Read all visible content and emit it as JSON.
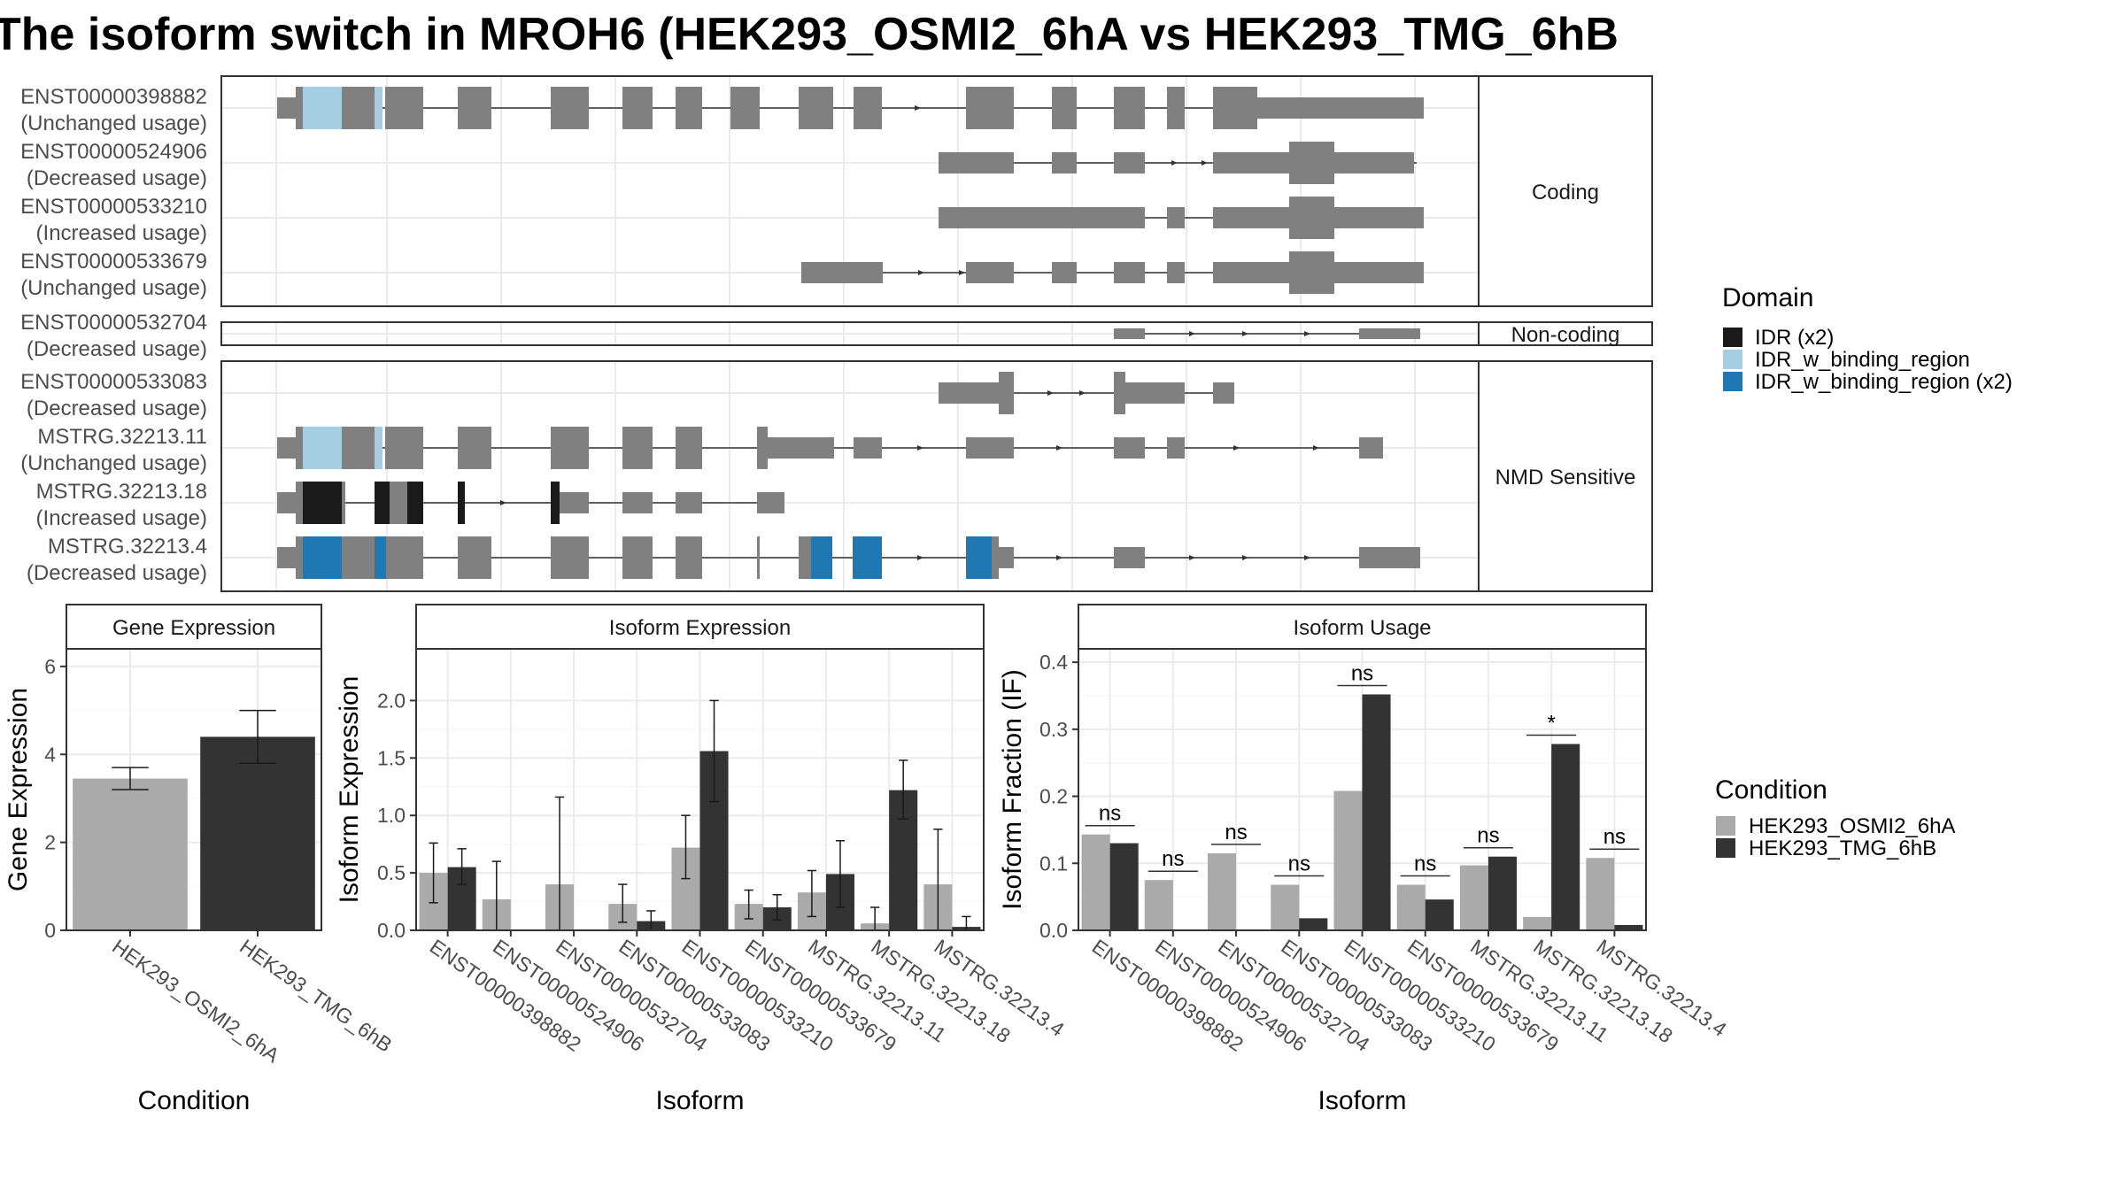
{
  "title": "The isoform switch in MROH6 (HEK293_OSMI2_6hA vs HEK293_TMG_6hB",
  "structure_panel": {
    "groups": [
      {
        "label": "Coding",
        "rows": [
          0,
          1,
          2,
          3
        ]
      },
      {
        "label": "Non-coding",
        "rows": [
          4
        ]
      },
      {
        "label": "NMD Sensitive",
        "rows": [
          5,
          6,
          7,
          8
        ]
      }
    ],
    "transcripts": [
      {
        "id": "ENST00000398882",
        "usage": "(Unchanged usage)"
      },
      {
        "id": "ENST00000524906",
        "usage": "(Decreased usage)"
      },
      {
        "id": "ENST00000533210",
        "usage": "(Increased usage)"
      },
      {
        "id": "ENST00000533679",
        "usage": "(Unchanged usage)"
      },
      {
        "id": "ENST00000532704",
        "usage": "(Decreased usage)"
      },
      {
        "id": "ENST00000533083",
        "usage": "(Decreased usage)"
      },
      {
        "id": "MSTRG.32213.11",
        "usage": "(Unchanged usage)"
      },
      {
        "id": "MSTRG.32213.18",
        "usage": "(Increased usage)"
      },
      {
        "id": "MSTRG.32213.4",
        "usage": "(Decreased usage)"
      }
    ]
  },
  "domain_legend": {
    "title": "Domain",
    "items": [
      {
        "label": "IDR (x2)",
        "color": "#1a1a1a"
      },
      {
        "label": "IDR_w_binding_region",
        "color": "#a6cee3"
      },
      {
        "label": "IDR_w_binding_region (x2)",
        "color": "#1f78b4"
      }
    ]
  },
  "condition_legend": {
    "title": "Condition",
    "items": [
      {
        "label": "HEK293_OSMI2_6hA",
        "color": "#aaaaaa"
      },
      {
        "label": "HEK293_TMG_6hB",
        "color": "#333333"
      }
    ]
  },
  "chart_data": [
    {
      "type": "bar",
      "title": "Gene Expression",
      "xlabel": "Condition",
      "ylabel": "Gene Expression",
      "ylim": [
        0,
        6.4
      ],
      "yticks": [
        0,
        2,
        4,
        6
      ],
      "categories": [
        "HEK293_OSMI2_6hA",
        "HEK293_TMG_6hB"
      ],
      "values": [
        3.45,
        4.4
      ],
      "error_low": [
        3.2,
        3.8
      ],
      "error_high": [
        3.7,
        5.0
      ]
    },
    {
      "type": "bar",
      "title": "Isoform Expression",
      "xlabel": "Isoform",
      "ylabel": "Isoform Expression",
      "ylim": [
        0,
        2.45
      ],
      "yticks": [
        "0.0",
        "0.5",
        "1.0",
        "1.5",
        "2.0"
      ],
      "categories": [
        "ENST00000398882",
        "ENST00000524906",
        "ENST00000532704",
        "ENST00000533083",
        "ENST00000533210",
        "ENST00000533679",
        "MSTRG.32213.11",
        "MSTRG.32213.18",
        "MSTRG.32213.4"
      ],
      "series": [
        {
          "name": "HEK293_OSMI2_6hA",
          "values": [
            0.5,
            0.27,
            0.4,
            0.23,
            0.72,
            0.23,
            0.33,
            0.06,
            0.4
          ],
          "error_low": [
            0.24,
            0.0,
            0.0,
            0.07,
            0.45,
            0.1,
            0.12,
            0.0,
            0.0
          ],
          "error_high": [
            0.76,
            0.6,
            1.16,
            0.4,
            1.0,
            0.35,
            0.52,
            0.2,
            0.88
          ]
        },
        {
          "name": "HEK293_TMG_6hB",
          "values": [
            0.55,
            0.0,
            0.0,
            0.08,
            1.56,
            0.2,
            0.49,
            1.22,
            0.03
          ],
          "error_low": [
            0.4,
            0.0,
            0.0,
            0.0,
            1.12,
            0.09,
            0.2,
            0.97,
            0.0
          ],
          "error_high": [
            0.71,
            0.0,
            0.0,
            0.17,
            2.0,
            0.31,
            0.78,
            1.48,
            0.12
          ]
        }
      ]
    },
    {
      "type": "bar",
      "title": "Isoform Usage",
      "xlabel": "Isoform",
      "ylabel": "Isoform Fraction (IF)",
      "ylim": [
        0,
        0.42
      ],
      "yticks": [
        "0.0",
        "0.1",
        "0.2",
        "0.3",
        "0.4"
      ],
      "categories": [
        "ENST00000398882",
        "ENST00000524906",
        "ENST00000532704",
        "ENST00000533083",
        "ENST00000533210",
        "ENST00000533679",
        "MSTRG.32213.11",
        "MSTRG.32213.18",
        "MSTRG.32213.4"
      ],
      "series": [
        {
          "name": "HEK293_OSMI2_6hA",
          "values": [
            0.143,
            0.075,
            0.115,
            0.068,
            0.208,
            0.068,
            0.097,
            0.02,
            0.108
          ]
        },
        {
          "name": "HEK293_TMG_6hB",
          "values": [
            0.13,
            0.0,
            0.0,
            0.018,
            0.352,
            0.046,
            0.11,
            0.278,
            0.008
          ]
        }
      ],
      "significance": [
        "ns",
        "ns",
        "ns",
        "ns",
        "ns",
        "ns",
        "ns",
        "*",
        "ns"
      ]
    }
  ]
}
